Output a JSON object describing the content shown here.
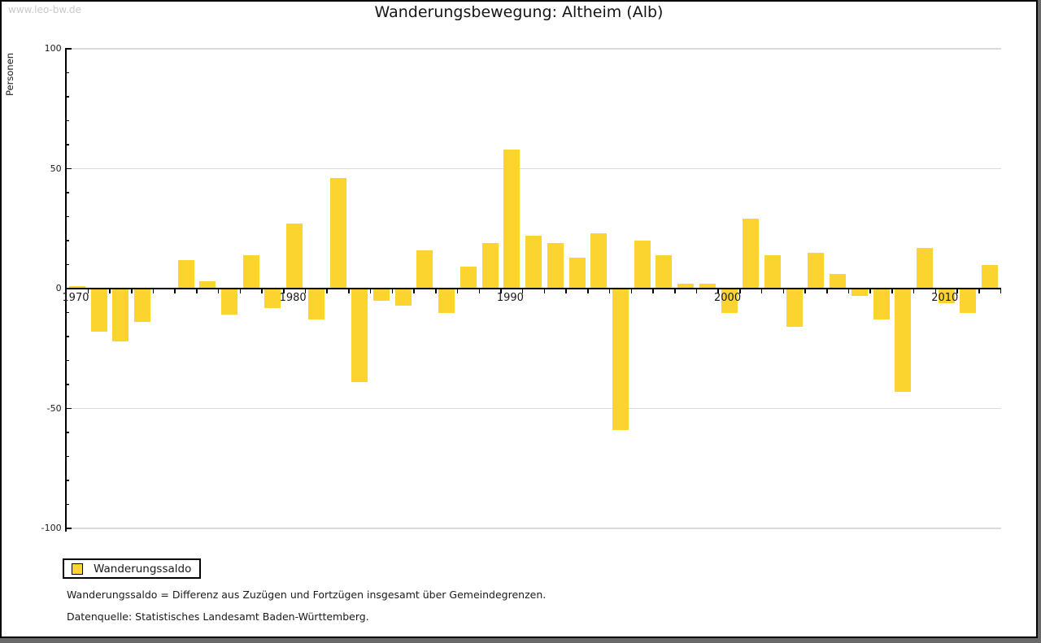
{
  "watermark": "www.leo-bw.de",
  "title": "Wanderungsbewegung: Altheim (Alb)",
  "legend": {
    "label": "Wanderungssaldo",
    "swatch_color": "#FCD42F"
  },
  "footnotes": [
    "Wanderungssaldo = Differenz aus Zuzügen und Fortzügen insgesamt über Gemeindegrenzen.",
    "Datenquelle: Statistisches Landesamt Baden-Württemberg."
  ],
  "colors": {
    "bar": "#FCD42F",
    "grid": "#DBDBDB",
    "axis": "#000000",
    "watermark": "#C9C9C9",
    "frame_shadow": "#6A6A6A"
  },
  "chart_data": {
    "type": "bar",
    "title": "Wanderungsbewegung: Altheim (Alb)",
    "xlabel": "",
    "ylabel": "Personen",
    "ylim": [
      -100,
      100
    ],
    "yticks": [
      100,
      50,
      0,
      -50,
      -100
    ],
    "ytick_minor_step": 10,
    "xtick_labels": [
      "1970",
      "1980",
      "1990",
      "2000",
      "2010"
    ],
    "grid": true,
    "legend_position": "bottom-left",
    "series": [
      {
        "name": "Wanderungssaldo",
        "color": "#FCD42F",
        "categories": [
          1970,
          1971,
          1972,
          1973,
          1974,
          1975,
          1976,
          1977,
          1978,
          1979,
          1980,
          1981,
          1982,
          1983,
          1984,
          1985,
          1986,
          1987,
          1988,
          1989,
          1990,
          1991,
          1992,
          1993,
          1994,
          1995,
          1996,
          1997,
          1998,
          1999,
          2000,
          2001,
          2002,
          2003,
          2004,
          2005,
          2006,
          2007,
          2008,
          2009,
          2010,
          2011,
          2012
        ],
        "values": [
          1,
          -18,
          -22,
          -14,
          0,
          12,
          3,
          -11,
          14,
          -8,
          27,
          -13,
          46,
          -39,
          -5,
          -7,
          16,
          -10,
          9,
          19,
          58,
          22,
          19,
          13,
          23,
          -59,
          20,
          14,
          2,
          2,
          -10,
          29,
          14,
          -16,
          15,
          6,
          -3,
          -13,
          -43,
          17,
          -6,
          -10,
          10
        ]
      }
    ]
  }
}
